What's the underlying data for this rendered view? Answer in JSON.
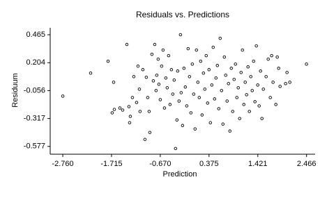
{
  "chart_data": {
    "type": "scatter",
    "title": "Residuals vs. Predictions",
    "x_label": "Prediction",
    "y_label": "Residuum",
    "xlim": [
      -3.03,
      2.65
    ],
    "ylim": [
      -0.65,
      0.53
    ],
    "xticks": [
      {
        "value": -2.76,
        "label": "-2.760"
      },
      -1.715,
      {
        "value": -0.67,
        "label": "-0.670"
      },
      0.375,
      1.421,
      2.466
    ],
    "yticks": [
      -0.577,
      -0.317,
      -0.056,
      0.204,
      0.465
    ],
    "color": "#000000",
    "x": [
      -2.76,
      -2.163,
      -1.79,
      -1.67,
      -1.7,
      -1.655,
      -1.536,
      -1.476,
      -1.387,
      -1.342,
      -1.312,
      -1.327,
      -1.267,
      -1.237,
      -1.178,
      -1.148,
      -1.118,
      -1.103,
      -1.043,
      -0.998,
      -0.969,
      -0.939,
      -0.894,
      -0.909,
      -0.849,
      -0.819,
      -0.789,
      -0.76,
      -0.745,
      -0.715,
      -0.7,
      -0.67,
      -0.64,
      -0.61,
      -0.58,
      -0.551,
      -0.521,
      -0.491,
      -0.461,
      -0.431,
      -0.401,
      -0.372,
      -0.342,
      -0.312,
      -0.297,
      -0.267,
      -0.237,
      -0.222,
      -0.192,
      -0.162,
      -0.133,
      -0.103,
      -0.073,
      -0.043,
      -0.013,
      0.017,
      0.047,
      0.076,
      0.106,
      0.136,
      0.166,
      0.196,
      0.226,
      0.256,
      0.285,
      0.315,
      0.345,
      0.375,
      0.405,
      0.435,
      0.465,
      0.494,
      0.524,
      0.554,
      0.584,
      0.614,
      0.644,
      0.674,
      0.704,
      0.733,
      0.763,
      0.793,
      0.823,
      0.853,
      0.883,
      0.913,
      0.942,
      0.972,
      1.002,
      1.032,
      1.062,
      1.092,
      1.122,
      1.151,
      1.181,
      1.211,
      1.241,
      1.271,
      1.301,
      1.331,
      1.36,
      1.39,
      1.42,
      1.45,
      1.48,
      1.51,
      1.54,
      1.599,
      1.644,
      1.689,
      1.718,
      1.748,
      1.808,
      1.838,
      1.868,
      1.898,
      2.017,
      2.047,
      2.107,
      2.465
    ],
    "y": [
      -0.108,
      0.107,
      0.218,
      0.022,
      -0.264,
      -0.232,
      -0.219,
      -0.238,
      0.374,
      -0.206,
      -0.297,
      -0.356,
      -0.121,
      0.074,
      -0.167,
      0.172,
      -0.043,
      -0.251,
      0.139,
      -0.512,
      0.068,
      -0.121,
      -0.447,
      -0.251,
      0.283,
      0.035,
      0.374,
      -0.056,
      0.087,
      0.237,
      0.003,
      -0.141,
      0.172,
      0.322,
      -0.219,
      0.061,
      -0.03,
      0.27,
      -0.186,
      0.139,
      -0.089,
      0.042,
      -0.597,
      -0.33,
      0.126,
      -0.154,
      0.465,
      -0.076,
      -0.382,
      0.152,
      -0.023,
      -0.199,
      0.335,
      0.074,
      -0.264,
      0.191,
      -0.089,
      -0.414,
      0.322,
      0.022,
      -0.121,
      0.218,
      -0.284,
      0.107,
      -0.043,
      0.27,
      -0.173,
      0.139,
      -0.356,
      -0.004,
      0.348,
      -0.134,
      0.061,
      0.178,
      -0.225,
      0.432,
      -0.056,
      -0.369,
      0.257,
      0.087,
      -0.154,
      0.009,
      -0.434,
      0.152,
      -0.251,
      0.048,
      0.191,
      -0.121,
      -0.03,
      -0.317,
      0.113,
      0.322,
      -0.186,
      0.022,
      -0.095,
      0.165,
      -0.251,
      0.074,
      -0.056,
      0.218,
      -0.16,
      0.361,
      -0.004,
      -0.199,
      0.126,
      -0.317,
      -0.043,
      0.074,
      0.237,
      -0.121,
      0.27,
      0.022,
      -0.186,
      0.257,
      0.152,
      -0.017,
      0.009,
      0.113,
      0.022,
      0.191
    ]
  }
}
